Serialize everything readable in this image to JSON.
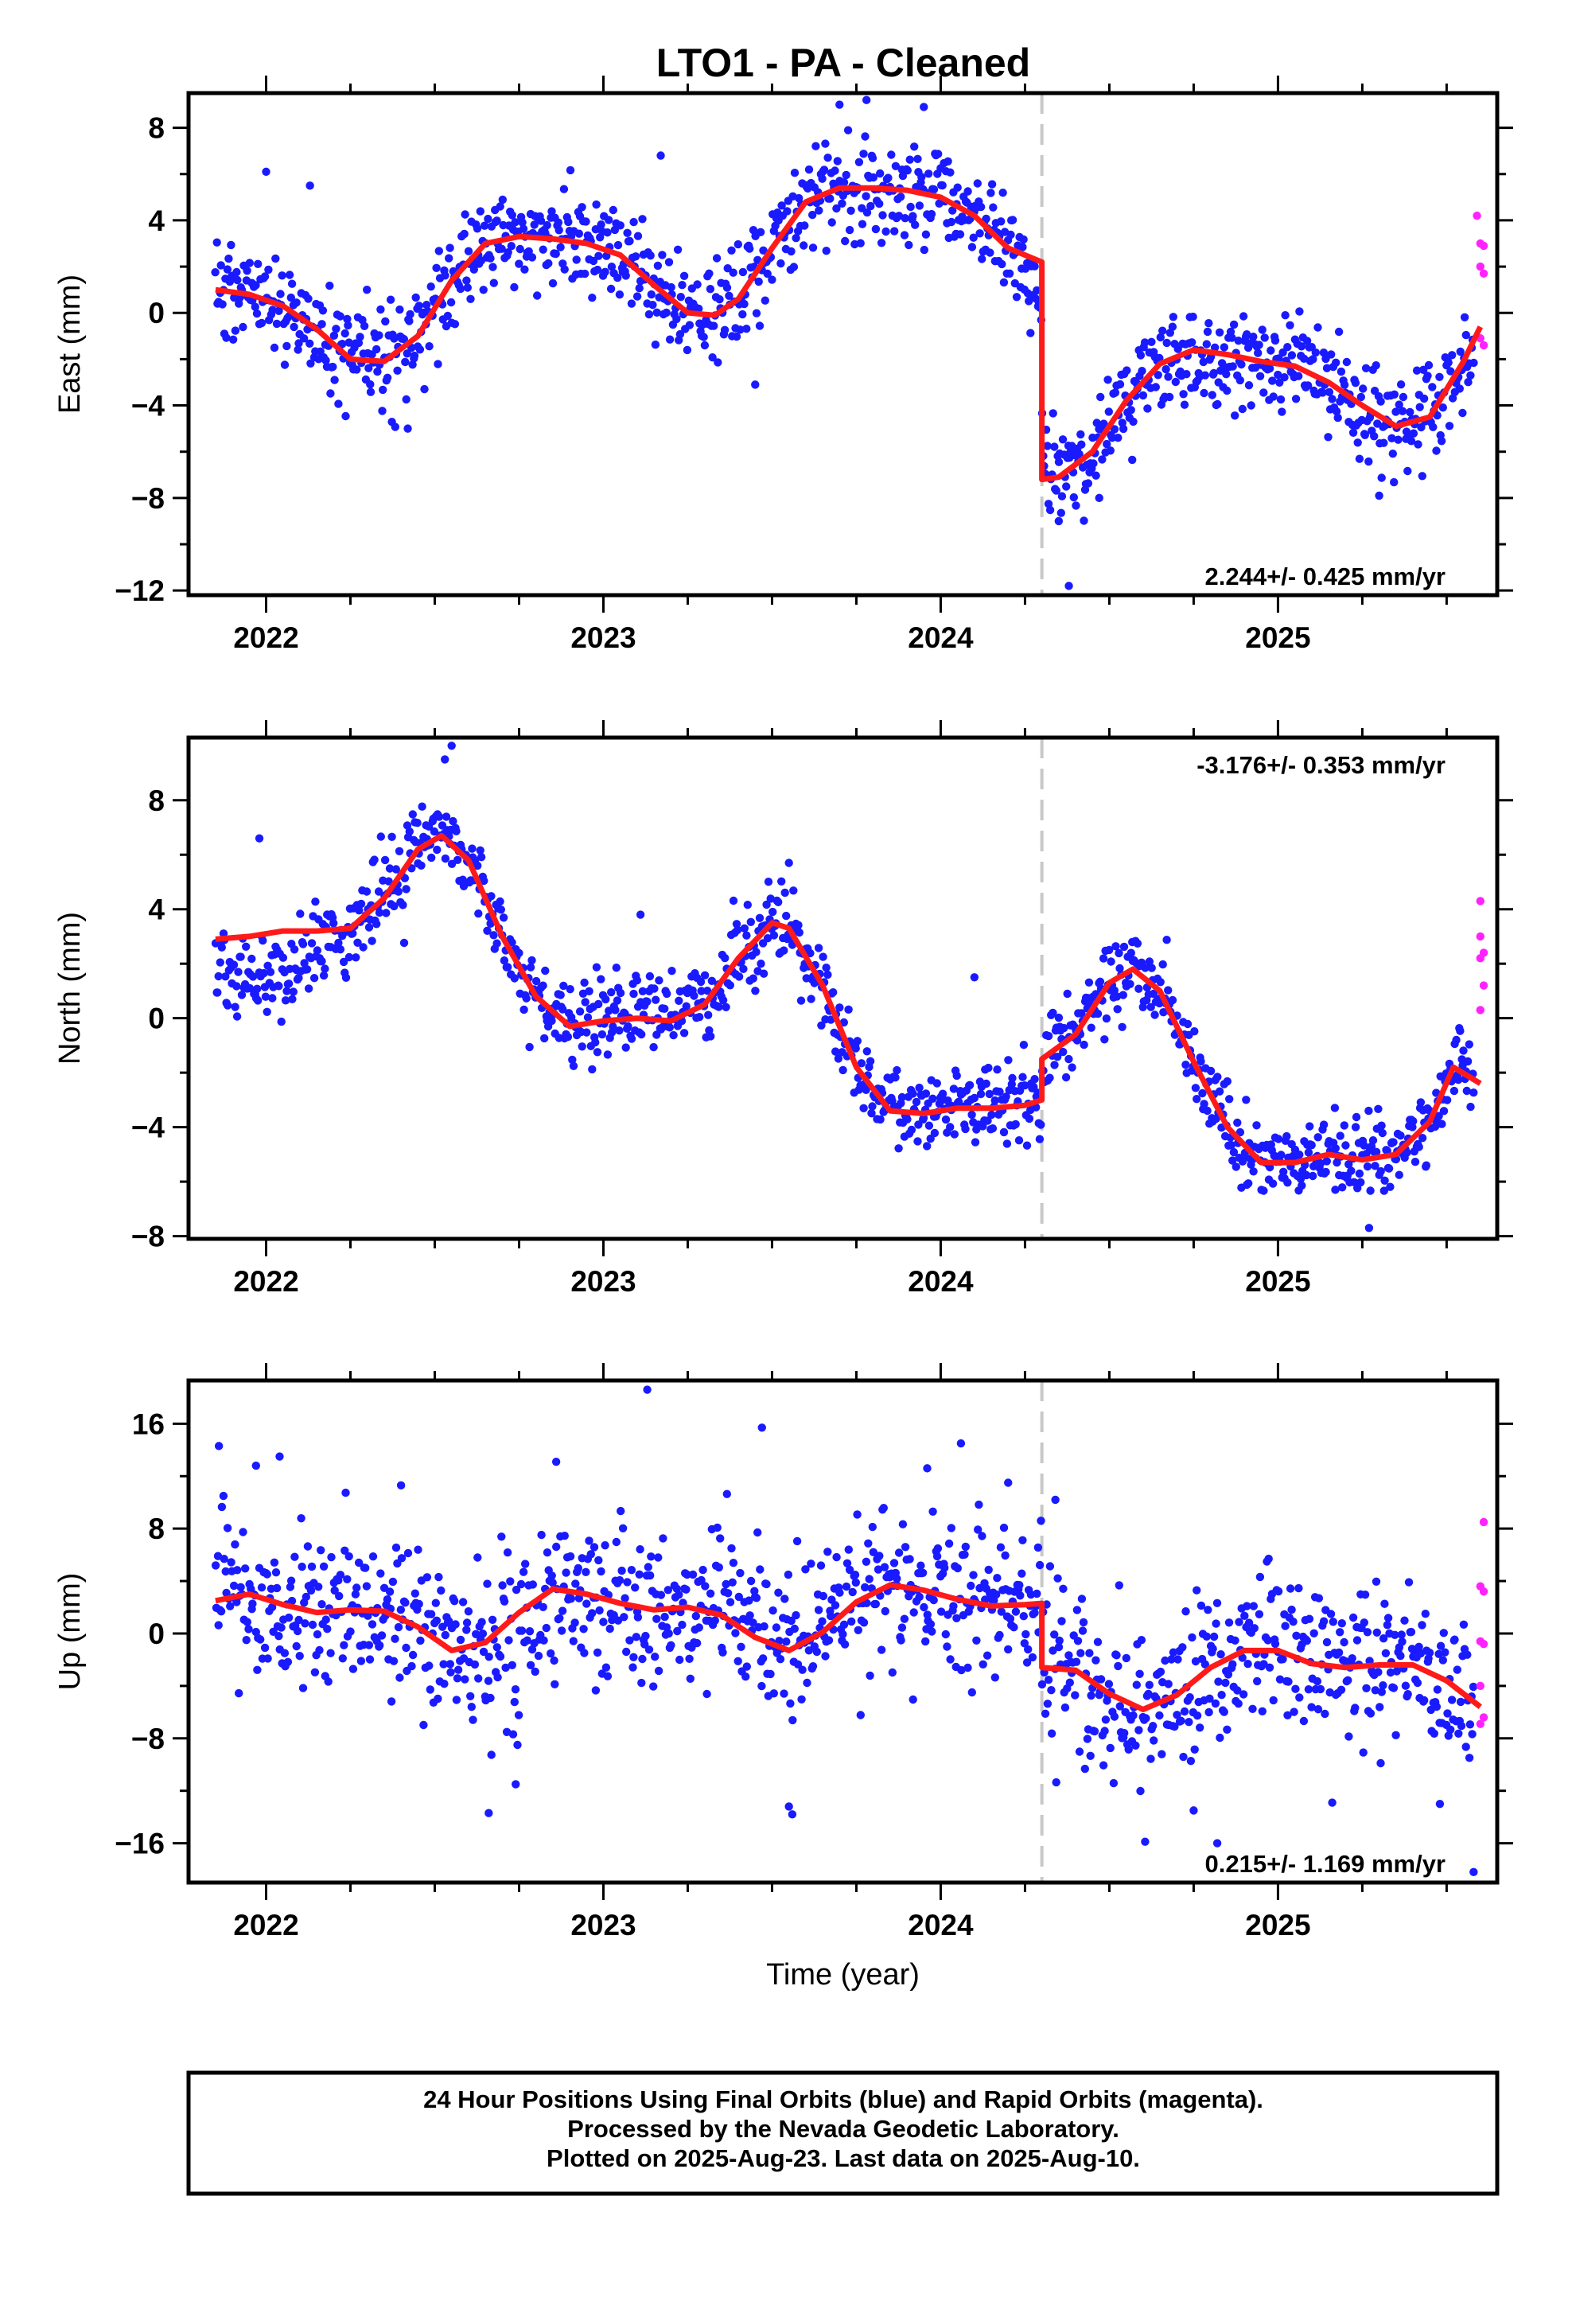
{
  "title": "LTO1  - PA - Cleaned",
  "footer": {
    "line1": "24 Hour Positions Using Final Orbits (blue) and Rapid Orbits (magenta).",
    "line2": "Processed by the Nevada Geodetic Laboratory.",
    "line3": "Plotted on 2025-Aug-23. Last data on 2025-Aug-10."
  },
  "colors": {
    "final_orbits": "#1a1aff",
    "rapid_orbits": "#ff22ff",
    "model": "#ff1a1a",
    "offset_marker": "#c8c8c8"
  },
  "chart_data": [
    {
      "type": "scatter",
      "component": "east",
      "ylabel": "East (mm)",
      "xlabel": "",
      "xlim": [
        2021.77,
        2025.65
      ],
      "ylim": [
        -12.2,
        9.5
      ],
      "x_ticks": [
        2022,
        2023,
        2024,
        2025
      ],
      "x_tick_labels": [
        "2022",
        "2023",
        "2024",
        "2025"
      ],
      "y_ticks": [
        8,
        4,
        0,
        -4,
        -8,
        -12
      ],
      "y_tick_labels": [
        "8",
        "4",
        "0",
        "−4",
        "−8",
        "−12"
      ],
      "rate": "2.244+/- 0.425 mm/yr",
      "rate_position": "bottom-right",
      "offset_epoch": 2024.3,
      "model": {
        "x": [
          2021.85,
          2021.95,
          2022.05,
          2022.15,
          2022.25,
          2022.35,
          2022.45,
          2022.55,
          2022.65,
          2022.75,
          2022.85,
          2022.95,
          2023.05,
          2023.15,
          2023.25,
          2023.33,
          2023.4,
          2023.5,
          2023.6,
          2023.7,
          2023.8,
          2023.9,
          2024.0,
          2024.1,
          2024.2,
          2024.3,
          2024.3,
          2024.35,
          2024.45,
          2024.55,
          2024.65,
          2024.75,
          2024.85,
          2024.95,
          2025.05,
          2025.15,
          2025.25,
          2025.35,
          2025.45,
          2025.55,
          2025.6
        ],
        "y": [
          1.0,
          0.8,
          0.3,
          -0.7,
          -2.0,
          -2.1,
          -1.0,
          1.4,
          3.0,
          3.3,
          3.2,
          3.0,
          2.5,
          1.2,
          0.0,
          -0.1,
          0.6,
          2.8,
          4.8,
          5.4,
          5.4,
          5.3,
          5.0,
          4.2,
          2.8,
          2.2,
          -7.2,
          -7.1,
          -6.0,
          -3.8,
          -2.2,
          -1.6,
          -1.8,
          -2.1,
          -2.3,
          -3.0,
          -4.0,
          -4.9,
          -4.5,
          -2.1,
          -0.6
        ]
      },
      "final_trend": [
        [
          2021.85,
          1.0
        ],
        [
          2021.95,
          0.8
        ],
        [
          2022.05,
          0.3
        ],
        [
          2022.15,
          -0.7
        ],
        [
          2022.25,
          -2.0
        ],
        [
          2022.35,
          -2.1
        ],
        [
          2022.45,
          -1.0
        ],
        [
          2022.55,
          1.4
        ],
        [
          2022.65,
          3.0
        ],
        [
          2022.75,
          3.3
        ],
        [
          2022.85,
          3.2
        ],
        [
          2022.95,
          3.0
        ],
        [
          2023.05,
          2.5
        ],
        [
          2023.15,
          1.2
        ],
        [
          2023.25,
          0.0
        ],
        [
          2023.33,
          -0.1
        ],
        [
          2023.4,
          0.6
        ],
        [
          2023.5,
          2.8
        ],
        [
          2023.6,
          4.8
        ],
        [
          2023.7,
          5.4
        ],
        [
          2023.8,
          5.4
        ],
        [
          2023.9,
          5.3
        ],
        [
          2024.0,
          5.0
        ],
        [
          2024.1,
          4.2
        ],
        [
          2024.2,
          2.8
        ],
        [
          2024.299,
          0.5
        ],
        [
          2024.301,
          -6.5
        ],
        [
          2024.35,
          -6.8
        ],
        [
          2024.45,
          -6.0
        ],
        [
          2024.55,
          -3.8
        ],
        [
          2024.65,
          -2.2
        ],
        [
          2024.75,
          -1.6
        ],
        [
          2024.85,
          -1.8
        ],
        [
          2024.95,
          -2.1
        ],
        [
          2025.05,
          -2.3
        ],
        [
          2025.15,
          -3.0
        ],
        [
          2025.25,
          -4.0
        ],
        [
          2025.35,
          -4.9
        ],
        [
          2025.45,
          -4.5
        ],
        [
          2025.55,
          -2.1
        ],
        [
          2025.6,
          -0.6
        ]
      ],
      "final_range": [
        2021.85,
        2025.58
      ],
      "final_count": 1150,
      "final_scatter_sd": 1.1,
      "final_outliers": [
        [
          2022.0,
          6.1
        ],
        [
          2022.13,
          5.5
        ],
        [
          2022.42,
          -5.0
        ],
        [
          2023.17,
          6.8
        ],
        [
          2023.45,
          -3.1
        ],
        [
          2023.7,
          9.0
        ],
        [
          2023.78,
          9.2
        ],
        [
          2023.95,
          8.9
        ],
        [
          2024.35,
          -9.0
        ],
        [
          2024.38,
          -11.8
        ],
        [
          2024.47,
          -8.0
        ],
        [
          2025.3,
          -7.9
        ]
      ],
      "rapid_points": [
        [
          2025.59,
          4.2
        ],
        [
          2025.6,
          3.0
        ],
        [
          2025.61,
          2.9
        ],
        [
          2025.6,
          2.0
        ],
        [
          2025.61,
          1.7
        ],
        [
          2025.6,
          -1.1
        ],
        [
          2025.61,
          -1.4
        ]
      ]
    },
    {
      "type": "scatter",
      "component": "north",
      "ylabel": "North (mm)",
      "xlabel": "",
      "xlim": [
        2021.77,
        2025.65
      ],
      "ylim": [
        -8.1,
        10.3
      ],
      "x_ticks": [
        2022,
        2023,
        2024,
        2025
      ],
      "x_tick_labels": [
        "2022",
        "2023",
        "2024",
        "2025"
      ],
      "y_ticks": [
        8,
        4,
        0,
        -4,
        -8
      ],
      "y_tick_labels": [
        "8",
        "4",
        "0",
        "−4",
        "−8"
      ],
      "rate": "-3.176+/- 0.353 mm/yr",
      "rate_position": "top-right",
      "offset_epoch": 2024.3,
      "model": {
        "x": [
          2021.85,
          2021.95,
          2022.05,
          2022.15,
          2022.25,
          2022.35,
          2022.45,
          2022.52,
          2022.6,
          2022.7,
          2022.8,
          2022.9,
          2023.0,
          2023.1,
          2023.2,
          2023.3,
          2023.4,
          2023.5,
          2023.55,
          2023.65,
          2023.75,
          2023.85,
          2023.95,
          2024.05,
          2024.15,
          2024.25,
          2024.3,
          2024.3,
          2024.4,
          2024.5,
          2024.57,
          2024.65,
          2024.75,
          2024.85,
          2024.95,
          2025.05,
          2025.15,
          2025.25,
          2025.35,
          2025.45,
          2025.52,
          2025.6
        ],
        "y": [
          2.9,
          3.0,
          3.2,
          3.2,
          3.3,
          4.4,
          6.2,
          6.7,
          5.8,
          3.0,
          0.8,
          -0.3,
          -0.1,
          0.0,
          -0.1,
          0.5,
          2.2,
          3.5,
          3.3,
          1.2,
          -1.8,
          -3.4,
          -3.5,
          -3.3,
          -3.3,
          -3.2,
          -3.0,
          -1.5,
          -0.6,
          1.3,
          1.8,
          1.0,
          -1.6,
          -4.0,
          -5.3,
          -5.3,
          -5.0,
          -5.2,
          -5.0,
          -3.8,
          -1.8,
          -2.4
        ]
      },
      "final_trend": [
        [
          2021.85,
          2.0
        ],
        [
          2021.95,
          1.5
        ],
        [
          2022.05,
          1.7
        ],
        [
          2022.15,
          2.6
        ],
        [
          2022.25,
          3.3
        ],
        [
          2022.35,
          4.4
        ],
        [
          2022.45,
          6.2
        ],
        [
          2022.52,
          7.2
        ],
        [
          2022.6,
          5.8
        ],
        [
          2022.7,
          3.0
        ],
        [
          2022.8,
          0.8
        ],
        [
          2022.9,
          -0.3
        ],
        [
          2023.0,
          -0.1
        ],
        [
          2023.1,
          0.3
        ],
        [
          2023.2,
          0.1
        ],
        [
          2023.3,
          0.5
        ],
        [
          2023.4,
          2.2
        ],
        [
          2023.5,
          3.5
        ],
        [
          2023.55,
          3.3
        ],
        [
          2023.65,
          1.2
        ],
        [
          2023.75,
          -1.8
        ],
        [
          2023.85,
          -3.4
        ],
        [
          2023.95,
          -3.5
        ],
        [
          2024.05,
          -3.3
        ],
        [
          2024.15,
          -3.0
        ],
        [
          2024.25,
          -3.2
        ],
        [
          2024.299,
          -3.0
        ],
        [
          2024.301,
          -1.5
        ],
        [
          2024.4,
          -0.6
        ],
        [
          2024.5,
          1.3
        ],
        [
          2024.57,
          1.8
        ],
        [
          2024.65,
          1.0
        ],
        [
          2024.75,
          -1.6
        ],
        [
          2024.85,
          -4.0
        ],
        [
          2024.95,
          -5.3
        ],
        [
          2025.05,
          -5.3
        ],
        [
          2025.15,
          -5.0
        ],
        [
          2025.25,
          -5.2
        ],
        [
          2025.35,
          -5.0
        ],
        [
          2025.45,
          -3.8
        ],
        [
          2025.52,
          -1.8
        ],
        [
          2025.58,
          -2.4
        ]
      ],
      "final_range": [
        2021.85,
        2025.58
      ],
      "final_count": 1150,
      "final_scatter_sd": 0.75,
      "final_outliers": [
        [
          2021.98,
          6.6
        ],
        [
          2022.55,
          10.0
        ],
        [
          2022.53,
          9.5
        ],
        [
          2023.11,
          3.8
        ],
        [
          2023.55,
          5.7
        ],
        [
          2024.1,
          1.5
        ],
        [
          2025.27,
          -7.7
        ],
        [
          2025.17,
          -6.3
        ]
      ],
      "rapid_points": [
        [
          2025.6,
          4.3
        ],
        [
          2025.6,
          3.0
        ],
        [
          2025.61,
          2.4
        ],
        [
          2025.6,
          2.2
        ],
        [
          2025.61,
          1.2
        ],
        [
          2025.6,
          0.3
        ]
      ]
    },
    {
      "type": "scatter",
      "component": "up",
      "ylabel": "Up (mm)",
      "xlabel": "Time (year)",
      "xlim": [
        2021.77,
        2025.65
      ],
      "ylim": [
        -19.0,
        19.3
      ],
      "x_ticks": [
        2022,
        2023,
        2024,
        2025
      ],
      "x_tick_labels": [
        "2022",
        "2023",
        "2024",
        "2025"
      ],
      "y_ticks": [
        16,
        8,
        0,
        -8,
        -16
      ],
      "y_tick_labels": [
        "16",
        "8",
        "0",
        "−8",
        "−16"
      ],
      "rate": "0.215+/- 1.169 mm/yr",
      "rate_position": "bottom-right",
      "offset_epoch": 2024.3,
      "model": {
        "x": [
          2021.85,
          2021.95,
          2022.05,
          2022.15,
          2022.25,
          2022.35,
          2022.45,
          2022.55,
          2022.65,
          2022.75,
          2022.85,
          2022.95,
          2023.05,
          2023.15,
          2023.25,
          2023.35,
          2023.45,
          2023.55,
          2023.65,
          2023.75,
          2023.85,
          2023.95,
          2024.05,
          2024.15,
          2024.25,
          2024.3,
          2024.3,
          2024.4,
          2024.5,
          2024.6,
          2024.7,
          2024.8,
          2024.9,
          2025.0,
          2025.1,
          2025.2,
          2025.3,
          2025.4,
          2025.5,
          2025.6
        ],
        "y": [
          2.5,
          3.0,
          2.2,
          1.6,
          1.8,
          1.7,
          0.5,
          -1.3,
          -0.7,
          1.6,
          3.4,
          3.0,
          2.3,
          1.8,
          2.0,
          1.4,
          -0.3,
          -1.3,
          0.1,
          2.4,
          3.7,
          3.3,
          2.6,
          2.1,
          2.2,
          2.3,
          -2.6,
          -2.8,
          -4.6,
          -5.8,
          -4.7,
          -2.6,
          -1.3,
          -1.3,
          -2.3,
          -2.6,
          -2.4,
          -2.4,
          -3.6,
          -5.6
        ]
      },
      "final_trend": [
        [
          2021.85,
          3.5
        ],
        [
          2021.95,
          3.5
        ],
        [
          2022.05,
          2.2
        ],
        [
          2022.15,
          1.6
        ],
        [
          2022.25,
          1.8
        ],
        [
          2022.35,
          1.7
        ],
        [
          2022.45,
          0.0
        ],
        [
          2022.55,
          -1.3
        ],
        [
          2022.65,
          -2.5
        ],
        [
          2022.75,
          0.5
        ],
        [
          2022.85,
          3.4
        ],
        [
          2022.95,
          3.0
        ],
        [
          2023.05,
          2.3
        ],
        [
          2023.15,
          1.8
        ],
        [
          2023.25,
          2.0
        ],
        [
          2023.35,
          1.4
        ],
        [
          2023.45,
          -0.3
        ],
        [
          2023.55,
          -1.3
        ],
        [
          2023.65,
          0.1
        ],
        [
          2023.75,
          2.4
        ],
        [
          2023.85,
          3.7
        ],
        [
          2023.95,
          3.3
        ],
        [
          2024.05,
          2.6
        ],
        [
          2024.15,
          2.1
        ],
        [
          2024.25,
          2.2
        ],
        [
          2024.299,
          2.3
        ],
        [
          2024.301,
          -2.6
        ],
        [
          2024.4,
          -2.8
        ],
        [
          2024.5,
          -4.6
        ],
        [
          2024.6,
          -5.8
        ],
        [
          2024.7,
          -4.7
        ],
        [
          2024.8,
          -2.6
        ],
        [
          2024.9,
          -1.3
        ],
        [
          2025.0,
          -1.3
        ],
        [
          2025.1,
          -2.3
        ],
        [
          2025.2,
          -2.6
        ],
        [
          2025.3,
          -2.4
        ],
        [
          2025.4,
          -2.4
        ],
        [
          2025.5,
          -3.6
        ],
        [
          2025.58,
          -5.6
        ]
      ],
      "final_range": [
        2021.85,
        2025.58
      ],
      "final_count": 1150,
      "final_scatter_sd": 3.0,
      "final_outliers": [
        [
          2021.86,
          14.3
        ],
        [
          2021.97,
          12.8
        ],
        [
          2022.04,
          13.5
        ],
        [
          2022.4,
          11.3
        ],
        [
          2022.86,
          13.1
        ],
        [
          2023.13,
          18.6
        ],
        [
          2023.47,
          15.7
        ],
        [
          2023.96,
          12.6
        ],
        [
          2024.06,
          14.5
        ],
        [
          2024.2,
          11.5
        ],
        [
          2024.34,
          10.2
        ],
        [
          2022.66,
          -13.7
        ],
        [
          2022.74,
          -11.5
        ],
        [
          2023.56,
          -13.8
        ],
        [
          2023.55,
          -13.2
        ],
        [
          2024.75,
          -13.5
        ],
        [
          2024.82,
          -16.0
        ],
        [
          2025.58,
          -18.2
        ],
        [
          2025.48,
          -13.0
        ]
      ],
      "rapid_points": [
        [
          2025.61,
          8.5
        ],
        [
          2025.6,
          3.6
        ],
        [
          2025.61,
          3.2
        ],
        [
          2025.6,
          -0.6
        ],
        [
          2025.61,
          -0.8
        ],
        [
          2025.6,
          -4.0
        ],
        [
          2025.61,
          -6.4
        ],
        [
          2025.6,
          -6.9
        ]
      ]
    }
  ]
}
